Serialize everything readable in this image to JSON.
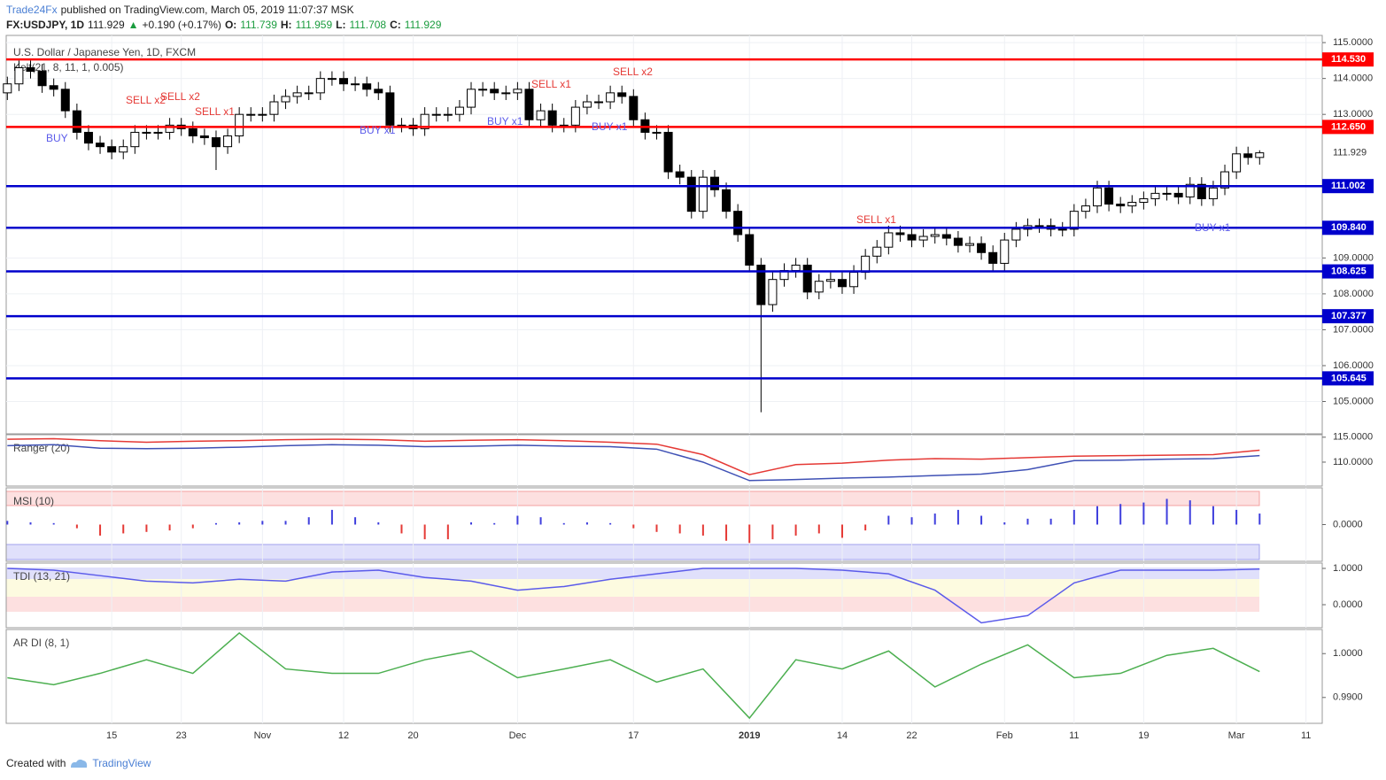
{
  "header": {
    "publisher": "Trade24Fx",
    "published": "published on TradingView.com, March 05, 2019 11:07:37 MSK",
    "symbol": "FX:USDJPY, 1D",
    "price": "111.929",
    "arrow": "▲",
    "change": "+0.190 (+0.17%)",
    "ohlc": [
      {
        "key": "O:",
        "value": "111.739"
      },
      {
        "key": "H:",
        "value": "111.959"
      },
      {
        "key": "L:",
        "value": "111.708"
      },
      {
        "key": "C:",
        "value": "111.929"
      }
    ]
  },
  "footer": {
    "created": "Created with",
    "brand": "TradingView"
  },
  "chart_data": [
    {
      "type": "candlestick",
      "title": "U.S. Dollar / Japanese Yen, 1D, FXCM",
      "indicator": "Kelt(21, 8, 11, 1, 0.005)",
      "open": [
        113.6,
        113.85,
        114.3,
        114.2,
        113.8,
        113.7,
        113.1,
        112.5,
        112.2,
        112.1,
        111.95,
        112.1,
        112.5,
        112.5,
        112.5,
        112.7,
        112.6,
        112.4,
        112.35,
        112.1,
        112.4,
        113.0,
        113.0,
        113.0,
        113.35,
        113.5,
        113.6,
        113.6,
        114.0,
        114.0,
        113.85,
        113.85,
        113.7,
        113.6,
        112.7,
        112.7,
        112.6,
        113.0,
        113.0,
        113.0,
        113.2,
        113.7,
        113.7,
        113.6,
        113.6,
        113.7,
        112.85,
        113.1,
        112.7,
        112.7,
        113.2,
        113.35,
        113.35,
        113.6,
        113.5,
        112.85,
        112.5,
        112.5,
        111.4,
        111.25,
        110.3,
        111.25,
        110.9,
        110.3,
        109.65,
        108.8,
        107.7,
        108.4,
        108.65,
        108.8,
        108.05,
        108.35,
        108.4,
        108.2,
        108.6,
        109.05,
        109.3,
        109.7,
        109.65,
        109.5,
        109.6,
        109.65,
        109.55,
        109.35,
        109.4,
        109.15,
        108.85,
        109.5,
        109.8,
        109.9,
        109.9,
        109.8,
        109.8,
        110.3,
        110.45,
        110.95,
        110.5,
        110.45,
        110.55,
        110.65,
        110.8,
        110.8,
        110.7,
        111.05,
        110.65,
        110.95,
        111.4,
        111.9,
        111.8
      ],
      "high": [
        114.05,
        114.5,
        114.5,
        114.4,
        114.0,
        113.9,
        113.3,
        112.7,
        112.4,
        112.3,
        112.3,
        112.7,
        112.7,
        112.7,
        112.9,
        112.9,
        112.8,
        112.6,
        112.55,
        112.6,
        113.2,
        113.2,
        113.2,
        113.55,
        113.7,
        113.8,
        113.8,
        114.2,
        114.2,
        114.2,
        114.05,
        114.05,
        113.9,
        113.8,
        112.9,
        112.9,
        113.2,
        113.2,
        113.2,
        113.4,
        113.9,
        113.9,
        113.9,
        113.8,
        113.9,
        113.9,
        113.3,
        113.3,
        112.9,
        113.4,
        113.55,
        113.55,
        113.8,
        113.8,
        113.7,
        113.05,
        112.7,
        112.7,
        111.6,
        111.45,
        111.45,
        111.45,
        111.1,
        110.5,
        109.85,
        109.0,
        108.6,
        108.85,
        109.0,
        109.0,
        108.55,
        108.6,
        108.6,
        108.8,
        109.25,
        109.5,
        109.9,
        109.9,
        109.85,
        109.8,
        109.85,
        109.85,
        109.75,
        109.6,
        109.6,
        109.35,
        109.7,
        110.0,
        110.1,
        110.1,
        110.1,
        110.0,
        110.5,
        110.65,
        111.15,
        111.15,
        110.7,
        110.75,
        110.85,
        111.0,
        111.0,
        111.0,
        111.25,
        111.25,
        111.15,
        111.6,
        112.1,
        112.1,
        112.0
      ],
      "low": [
        113.4,
        113.65,
        114.0,
        113.6,
        113.5,
        112.9,
        112.3,
        112.0,
        111.9,
        111.75,
        111.75,
        111.9,
        112.3,
        112.3,
        112.3,
        112.4,
        112.2,
        112.15,
        111.45,
        111.9,
        112.2,
        112.8,
        112.8,
        112.8,
        113.15,
        113.3,
        113.4,
        113.4,
        113.8,
        113.65,
        113.65,
        113.5,
        113.4,
        112.5,
        112.5,
        112.4,
        112.4,
        112.8,
        112.8,
        112.8,
        113.0,
        113.5,
        113.4,
        113.4,
        113.4,
        112.65,
        112.65,
        112.5,
        112.5,
        112.5,
        113.0,
        113.15,
        113.15,
        113.3,
        112.65,
        112.3,
        112.3,
        111.2,
        111.05,
        110.1,
        110.1,
        110.7,
        110.1,
        109.45,
        108.6,
        104.7,
        107.5,
        108.2,
        108.45,
        107.85,
        107.85,
        108.15,
        108.0,
        108.0,
        108.4,
        108.85,
        109.1,
        109.45,
        109.3,
        109.3,
        109.4,
        109.35,
        109.15,
        109.15,
        108.95,
        108.65,
        108.65,
        109.3,
        109.6,
        109.7,
        109.6,
        109.6,
        109.6,
        110.1,
        110.25,
        110.3,
        110.25,
        110.25,
        110.35,
        110.45,
        110.6,
        110.5,
        110.5,
        110.45,
        110.45,
        110.75,
        111.2,
        111.6,
        111.6
      ],
      "close": [
        113.85,
        114.3,
        114.2,
        113.8,
        113.7,
        113.1,
        112.5,
        112.2,
        112.1,
        111.95,
        112.1,
        112.5,
        112.5,
        112.5,
        112.7,
        112.6,
        112.4,
        112.35,
        112.1,
        112.4,
        113.0,
        113.0,
        113.0,
        113.35,
        113.5,
        113.6,
        113.6,
        114.0,
        114.0,
        113.85,
        113.85,
        113.7,
        113.6,
        112.7,
        112.7,
        112.6,
        113.0,
        113.0,
        113.0,
        113.2,
        113.7,
        113.7,
        113.6,
        113.6,
        113.7,
        112.85,
        113.1,
        112.7,
        112.7,
        113.2,
        113.35,
        113.35,
        113.6,
        113.5,
        112.85,
        112.5,
        112.5,
        111.4,
        111.25,
        110.3,
        111.25,
        110.9,
        110.3,
        109.65,
        108.8,
        107.7,
        108.4,
        108.65,
        108.8,
        108.05,
        108.35,
        108.4,
        108.2,
        108.6,
        109.05,
        109.3,
        109.7,
        109.65,
        109.5,
        109.6,
        109.65,
        109.55,
        109.35,
        109.4,
        109.15,
        108.85,
        109.5,
        109.8,
        109.9,
        109.9,
        109.8,
        109.8,
        110.3,
        110.45,
        110.95,
        110.5,
        110.45,
        110.55,
        110.65,
        110.8,
        110.8,
        110.7,
        111.05,
        110.65,
        110.95,
        111.4,
        111.9,
        111.8,
        111.929
      ],
      "up_color": "#ffffff",
      "down_color": "#000000",
      "xlim": [
        -0.1,
        113.4
      ],
      "xticks": [
        {
          "value": 9,
          "label": "15"
        },
        {
          "value": 15,
          "label": "23"
        },
        {
          "value": 22,
          "label": "Nov"
        },
        {
          "value": 29,
          "label": "12"
        },
        {
          "value": 35,
          "label": "20"
        },
        {
          "value": 44,
          "label": "Dec"
        },
        {
          "value": 54,
          "label": "17"
        },
        {
          "value": 64,
          "label": "2019"
        },
        {
          "value": 72,
          "label": "14"
        },
        {
          "value": 78,
          "label": "22"
        },
        {
          "value": 86,
          "label": "Feb"
        },
        {
          "value": 92,
          "label": "11"
        },
        {
          "value": 98,
          "label": "19"
        },
        {
          "value": 106,
          "label": "Mar"
        },
        {
          "value": 112,
          "label": "11"
        }
      ],
      "ylim": [
        104.1,
        115.2
      ],
      "yticks": [
        {
          "value": 115,
          "label": "115.0000"
        },
        {
          "value": 114,
          "label": "114.0000"
        },
        {
          "value": 113,
          "label": "113.0000"
        },
        {
          "value": 109,
          "label": "109.0000"
        },
        {
          "value": 108,
          "label": "108.0000"
        },
        {
          "value": 107,
          "label": "107.0000"
        },
        {
          "value": 106,
          "label": "106.0000"
        },
        {
          "value": 105,
          "label": "105.0000"
        }
      ],
      "grid": true,
      "last_price": 111.929,
      "levels": [
        {
          "value": 114.53,
          "label": "114.530",
          "color": "#ff0000"
        },
        {
          "value": 112.65,
          "label": "112.650",
          "color": "#ff0000"
        },
        {
          "value": 111.002,
          "color": "#0000cc"
        },
        {
          "value": 109.84,
          "label": "109.840",
          "color": "#0000cc"
        },
        {
          "value": 108.625,
          "color": "#0000cc"
        },
        {
          "value": 107.377,
          "color": "#0000cc"
        },
        {
          "value": 105.645,
          "color": "#0000cc"
        }
      ],
      "annotations": [
        "SELL x2",
        "SELL x2",
        "SELL x1",
        "BUY",
        "BUY x1",
        "BUY x1",
        "SELL x1",
        "BUY x1",
        "SELL x2",
        "SELL x1",
        "BUY x1"
      ]
    },
    {
      "type": "line",
      "title": "Ranger (20)",
      "x": [
        0,
        4,
        8,
        12,
        16,
        20,
        24,
        28,
        32,
        36,
        40,
        44,
        48,
        52,
        56,
        60,
        64,
        68,
        72,
        76,
        80,
        84,
        88,
        92,
        96,
        100,
        104,
        108
      ],
      "series": [
        {
          "color": "#e53935",
          "values": [
            114.6,
            114.7,
            114.3,
            114.0,
            114.2,
            114.3,
            114.5,
            114.6,
            114.5,
            114.2,
            114.4,
            114.5,
            114.3,
            114.0,
            113.6,
            111.5,
            107.5,
            109.5,
            109.8,
            110.4,
            110.7,
            110.6,
            110.9,
            111.2,
            111.3,
            111.4,
            111.5,
            112.4
          ]
        },
        {
          "color": "#3f51b5",
          "values": [
            113.3,
            113.5,
            112.8,
            112.7,
            112.8,
            113.0,
            113.3,
            113.5,
            113.4,
            113.1,
            113.2,
            113.4,
            113.2,
            113.1,
            112.6,
            110.0,
            106.3,
            106.5,
            106.8,
            107.0,
            107.3,
            107.6,
            108.5,
            110.3,
            110.4,
            110.6,
            110.7,
            111.3
          ]
        }
      ],
      "ylim": [
        105.2,
        115.5
      ],
      "yticks": [
        {
          "value": 115,
          "label": "115.0000"
        },
        {
          "value": 110,
          "label": "110.0000"
        }
      ]
    },
    {
      "type": "bar",
      "title": "MSI (10)",
      "x": [
        0,
        2,
        4,
        6,
        8,
        10,
        12,
        14,
        16,
        18,
        20,
        22,
        24,
        26,
        28,
        30,
        32,
        34,
        36,
        38,
        40,
        42,
        44,
        46,
        48,
        50,
        52,
        54,
        56,
        58,
        60,
        62,
        64,
        66,
        68,
        70,
        72,
        74,
        76,
        78,
        80,
        82,
        84,
        86,
        88,
        90,
        92,
        94,
        96,
        98,
        100,
        102,
        104,
        106,
        108
      ],
      "values": [
        0.05,
        0.03,
        0.02,
        -0.05,
        -0.15,
        -0.12,
        -0.1,
        -0.08,
        -0.05,
        0.02,
        0.03,
        0.05,
        0.05,
        0.1,
        0.2,
        0.1,
        0.03,
        -0.12,
        -0.2,
        -0.2,
        0.03,
        0.02,
        0.12,
        0.1,
        0.02,
        0.03,
        0.02,
        -0.05,
        -0.1,
        -0.12,
        -0.15,
        -0.22,
        -0.25,
        -0.2,
        -0.15,
        -0.12,
        -0.18,
        -0.08,
        0.12,
        0.1,
        0.15,
        0.2,
        0.12,
        0.03,
        0.08,
        0.08,
        0.2,
        0.25,
        0.28,
        0.3,
        0.35,
        0.33,
        0.25,
        0.2,
        0.15
      ],
      "up_color": "#3f3fdd",
      "down_color": "#e53935",
      "ylim": [
        -0.5,
        0.5
      ],
      "yticks": [
        {
          "value": 0,
          "label": "0.0000"
        }
      ]
    },
    {
      "type": "line",
      "title": "TDI (13, 21)",
      "x": [
        0,
        4,
        8,
        12,
        16,
        20,
        24,
        28,
        32,
        36,
        40,
        44,
        48,
        52,
        56,
        60,
        64,
        68,
        72,
        76,
        80,
        84,
        88,
        92,
        96,
        100,
        104,
        108
      ],
      "series": [
        {
          "color": "#5b5bea",
          "values": [
            1.0,
            0.95,
            0.8,
            0.65,
            0.6,
            0.7,
            0.65,
            0.9,
            0.95,
            0.75,
            0.65,
            0.4,
            0.5,
            0.7,
            0.85,
            1.0,
            1.0,
            1.0,
            0.95,
            0.85,
            0.4,
            -0.5,
            -0.3,
            0.6,
            0.95,
            0.95,
            0.95,
            0.98
          ]
        }
      ],
      "ylim": [
        -0.634,
        1.146
      ],
      "yticks": [
        {
          "value": 1,
          "label": "1.0000"
        },
        {
          "value": 0,
          "label": "0.0000"
        }
      ]
    },
    {
      "type": "line",
      "title": "AR DI (8, 1)",
      "x": [
        0,
        4,
        8,
        12,
        16,
        20,
        24,
        28,
        32,
        36,
        40,
        44,
        48,
        52,
        56,
        60,
        64,
        68,
        72,
        76,
        80,
        84,
        88,
        92,
        96,
        100,
        104,
        108
      ],
      "series": [
        {
          "color": "#4caf50",
          "values": [
            0.9945,
            0.9929,
            0.9955,
            0.9986,
            0.9955,
            1.0047,
            0.9965,
            0.9955,
            0.9955,
            0.9986,
            1.0006,
            0.9945,
            0.9965,
            0.9986,
            0.9935,
            0.9965,
            0.9853,
            0.9986,
            0.9965,
            1.0006,
            0.9924,
            0.9976,
            1.002,
            0.9945,
            0.9955,
            0.9996,
            1.0012,
            0.9959
          ]
        }
      ],
      "ylim": [
        0.9841,
        1.0055
      ],
      "yticks": [
        {
          "value": 1,
          "label": "1.0000"
        },
        {
          "value": 0.99,
          "label": "0.9900"
        }
      ]
    }
  ]
}
